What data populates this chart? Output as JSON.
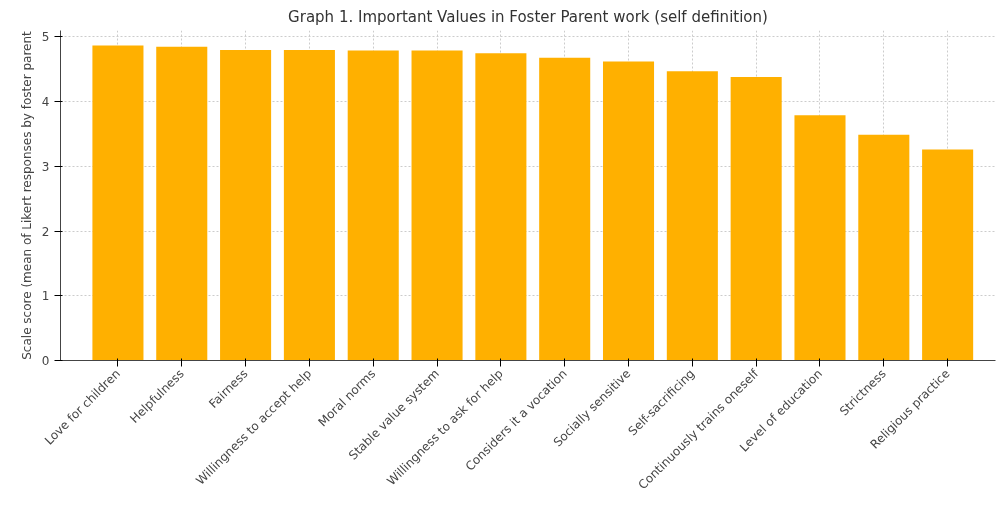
{
  "chart_data": {
    "type": "bar",
    "title": "Graph 1. Important Values in Foster Parent work (self definition)",
    "ylabel": "Scale score (mean of Likert responses by foster parent",
    "categories": [
      "Love for children",
      "Helpfulness",
      "Fairness",
      "Willingness to accept help",
      "Moral norms",
      "Stable value system",
      "Willingness to ask for help",
      "Considers it a vocation",
      "Socially sensitive",
      "Self-sacrificing",
      "Continuously trains oneself",
      "Level of education",
      "Strictness",
      "Religious practice"
    ],
    "values": [
      4.87,
      4.85,
      4.8,
      4.8,
      4.79,
      4.79,
      4.75,
      4.68,
      4.62,
      4.47,
      4.38,
      3.79,
      3.49,
      3.26
    ],
    "color": "#ffb000",
    "ylim": [
      0,
      5.1
    ],
    "yticks": [
      0,
      1,
      2,
      3,
      4,
      5
    ],
    "grid": true
  }
}
